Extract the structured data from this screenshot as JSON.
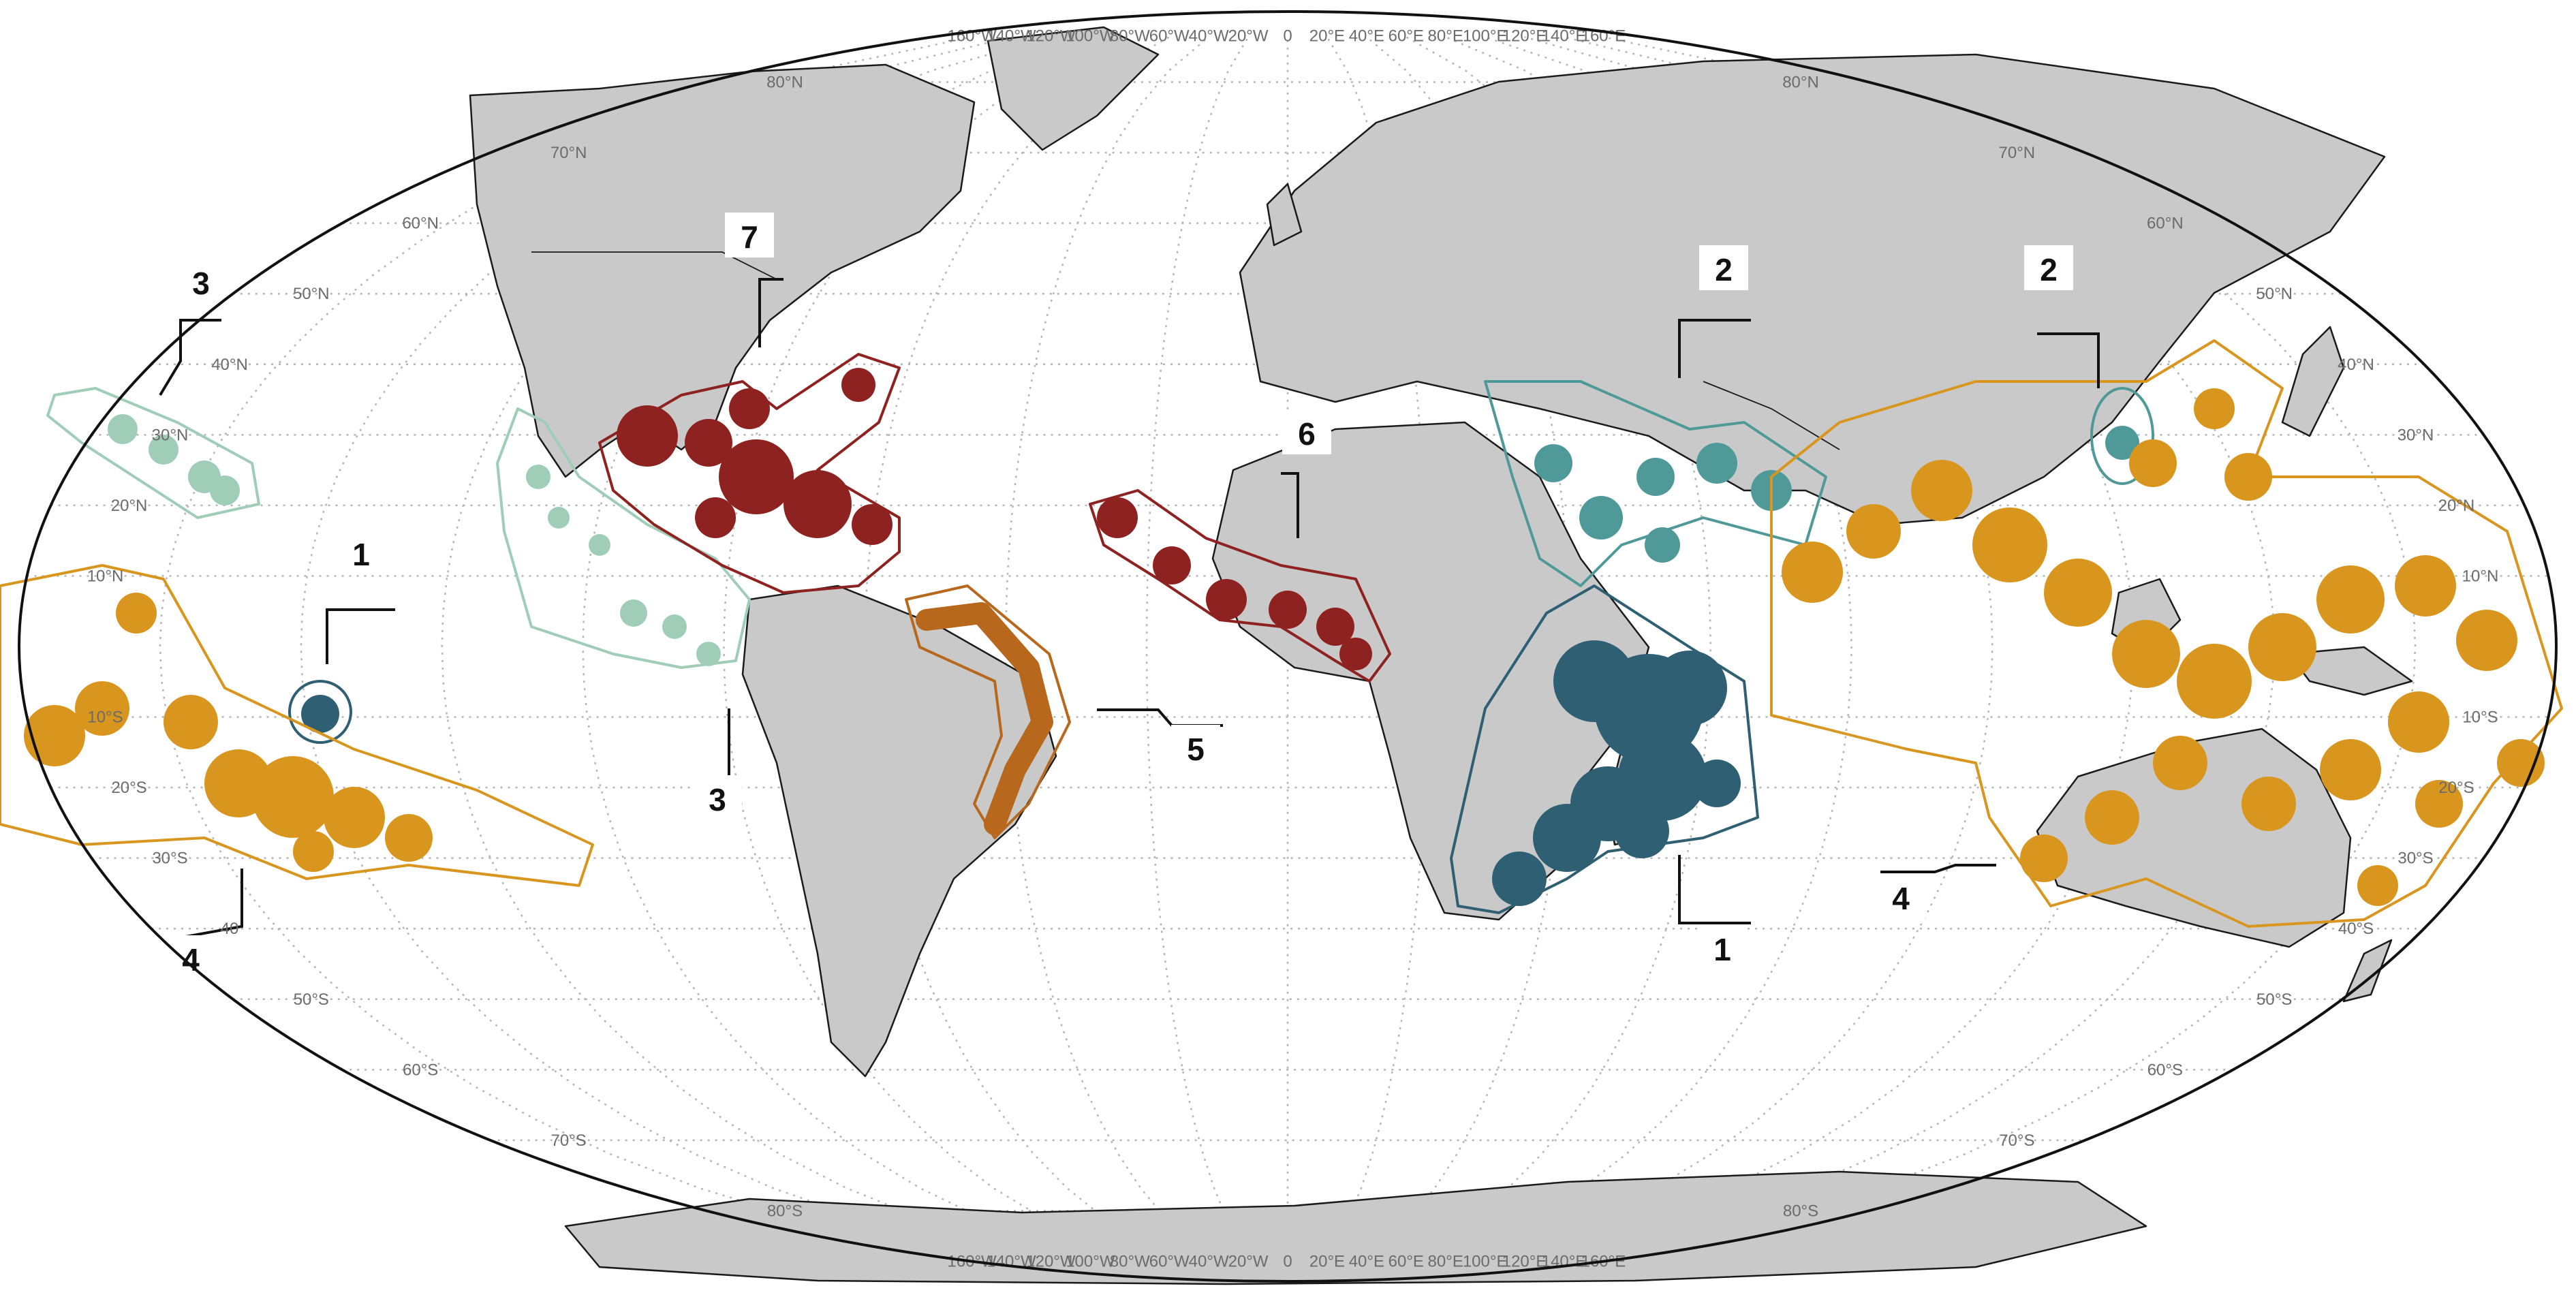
{
  "map": {
    "projection": "Robinson",
    "ocean_color": "#ffffff",
    "land_color": "#c9c9c9",
    "graticule_step_degrees": 10,
    "top_lon_labels": [
      "160°W",
      "140°W",
      "120°W",
      "100°W",
      "80°W",
      "60°W",
      "40°W",
      "20°W",
      "0",
      "20°E",
      "40°E",
      "60°E",
      "80°E",
      "100°E",
      "120°E",
      "140°E",
      "160°E"
    ],
    "bottom_lon_labels": [
      "160°W",
      "140°W",
      "120°W",
      "100°W",
      "80°W",
      "60°W",
      "40°W",
      "20°W",
      "0",
      "20°E",
      "40°E",
      "60°E",
      "80°E",
      "100°E",
      "120°E",
      "140°E",
      "160°E"
    ],
    "left_lat_labels": [
      "80°N",
      "70°N",
      "60°N",
      "50°N",
      "40°N",
      "30°N",
      "20°N",
      "10°N",
      "10°S",
      "20°S",
      "30°S",
      "40",
      "50°S",
      "60°S",
      "70°S",
      "80°S"
    ],
    "right_lat_labels": [
      "80°N",
      "70°N",
      "60°N",
      "50°N",
      "40°N",
      "30°N",
      "20°N",
      "10°N",
      "10°S",
      "20°S",
      "30°S",
      "40°S",
      "50°S",
      "60°S",
      "70°S",
      "80°S"
    ]
  },
  "regions": [
    {
      "id": "1",
      "label": "1",
      "color": "#2f5f73",
      "areas": [
        "Western Indian Ocean / Madagascar",
        "Central South Pacific atoll"
      ]
    },
    {
      "id": "2",
      "label": "2",
      "color": "#4f9a98",
      "areas": [
        "Red Sea / Arabian Sea / Bay of Bengal coast",
        "Taiwan"
      ]
    },
    {
      "id": "3",
      "label": "3",
      "color": "#9fcdb8",
      "areas": [
        "Hawaii",
        "Eastern Tropical Pacific"
      ]
    },
    {
      "id": "4",
      "label": "4",
      "color": "#d9961f",
      "areas": [
        "Indo-Pacific",
        "Central Pacific islands"
      ]
    },
    {
      "id": "5",
      "label": "5",
      "color": "#b8681c",
      "areas": [
        "Brazil coast"
      ]
    },
    {
      "id": "6",
      "label": "6",
      "color": "#8e2220",
      "areas": [
        "West Africa / Gulf of Guinea"
      ]
    },
    {
      "id": "7",
      "label": "7",
      "color": "#8e2220",
      "areas": [
        "Caribbean / Gulf of Mexico / Bermuda"
      ]
    }
  ]
}
